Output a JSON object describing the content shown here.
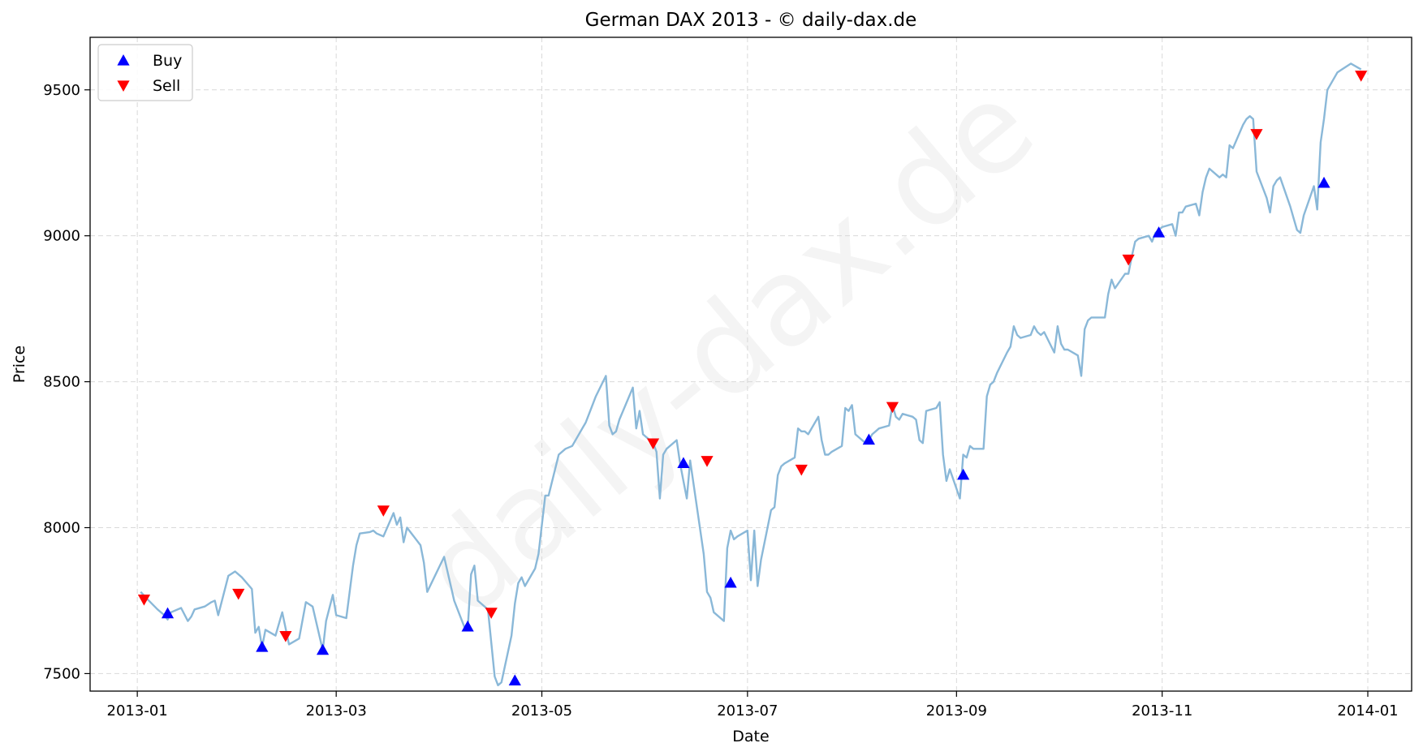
{
  "watermark": "daily-dax.de",
  "chart_data": {
    "type": "line",
    "title": "German DAX 2013 - © daily-dax.de",
    "xlabel": "Date",
    "ylabel": "Price",
    "xlim": [
      "2012-12-18",
      "2014-01-14"
    ],
    "ylim": [
      7440,
      9680
    ],
    "xticks": [
      "2013-01-01",
      "2013-03-01",
      "2013-05-01",
      "2013-07-01",
      "2013-09-01",
      "2013-11-01",
      "2014-01-01"
    ],
    "xtick_labels": [
      "2013-01",
      "2013-03",
      "2013-05",
      "2013-07",
      "2013-09",
      "2013-11",
      "2014-01"
    ],
    "yticks": [
      7500,
      8000,
      8500,
      9000,
      9500
    ],
    "ytick_labels": [
      "7500",
      "8000",
      "8500",
      "9000",
      "9500"
    ],
    "grid": true,
    "legend_position": "top-left",
    "colors": {
      "price": "#8ab8d8",
      "buy": "#0000ff",
      "sell": "#ff0000"
    },
    "series": [
      {
        "kind": "price",
        "x": [
          "2013-01-02",
          "2013-01-04",
          "2013-01-07",
          "2013-01-09",
          "2013-01-10",
          "2013-01-11",
          "2013-01-14",
          "2013-01-16",
          "2013-01-17",
          "2013-01-18",
          "2013-01-21",
          "2013-01-23",
          "2013-01-24",
          "2013-01-25",
          "2013-01-28",
          "2013-01-30",
          "2013-02-01",
          "2013-02-04",
          "2013-02-05",
          "2013-02-06",
          "2013-02-07",
          "2013-02-08",
          "2013-02-11",
          "2013-02-13",
          "2013-02-15",
          "2013-02-18",
          "2013-02-20",
          "2013-02-22",
          "2013-02-25",
          "2013-02-26",
          "2013-02-28",
          "2013-03-01",
          "2013-03-04",
          "2013-03-06",
          "2013-03-07",
          "2013-03-08",
          "2013-03-11",
          "2013-03-12",
          "2013-03-13",
          "2013-03-14",
          "2013-03-15",
          "2013-03-18",
          "2013-03-19",
          "2013-03-20",
          "2013-03-21",
          "2013-03-22",
          "2013-03-26",
          "2013-03-27",
          "2013-03-28",
          "2013-04-02",
          "2013-04-04",
          "2013-04-05",
          "2013-04-08",
          "2013-04-09",
          "2013-04-10",
          "2013-04-11",
          "2013-04-12",
          "2013-04-15",
          "2013-04-17",
          "2013-04-18",
          "2013-04-19",
          "2013-04-22",
          "2013-04-23",
          "2013-04-24",
          "2013-04-25",
          "2013-04-26",
          "2013-04-29",
          "2013-04-30",
          "2013-05-02",
          "2013-05-03",
          "2013-05-06",
          "2013-05-08",
          "2013-05-10",
          "2013-05-13",
          "2013-05-14",
          "2013-05-15",
          "2013-05-17",
          "2013-05-20",
          "2013-05-21",
          "2013-05-22",
          "2013-05-23",
          "2013-05-24",
          "2013-05-28",
          "2013-05-29",
          "2013-05-30",
          "2013-05-31",
          "2013-06-03",
          "2013-06-04",
          "2013-06-05",
          "2013-06-06",
          "2013-06-07",
          "2013-06-10",
          "2013-06-11",
          "2013-06-12",
          "2013-06-13",
          "2013-06-14",
          "2013-06-18",
          "2013-06-19",
          "2013-06-20",
          "2013-06-21",
          "2013-06-24",
          "2013-06-25",
          "2013-06-26",
          "2013-06-27",
          "2013-06-28",
          "2013-07-01",
          "2013-07-02",
          "2013-07-03",
          "2013-07-04",
          "2013-07-05",
          "2013-07-08",
          "2013-07-09",
          "2013-07-10",
          "2013-07-11",
          "2013-07-12",
          "2013-07-15",
          "2013-07-16",
          "2013-07-17",
          "2013-07-18",
          "2013-07-19",
          "2013-07-22",
          "2013-07-23",
          "2013-07-24",
          "2013-07-25",
          "2013-07-26",
          "2013-07-29",
          "2013-07-30",
          "2013-07-31",
          "2013-08-01",
          "2013-08-02",
          "2013-08-05",
          "2013-08-06",
          "2013-08-07",
          "2013-08-08",
          "2013-08-09",
          "2013-08-12",
          "2013-08-13",
          "2013-08-14",
          "2013-08-15",
          "2013-08-16",
          "2013-08-19",
          "2013-08-20",
          "2013-08-21",
          "2013-08-22",
          "2013-08-23",
          "2013-08-26",
          "2013-08-27",
          "2013-08-28",
          "2013-08-29",
          "2013-08-30",
          "2013-09-02",
          "2013-09-03",
          "2013-09-04",
          "2013-09-05",
          "2013-09-06",
          "2013-09-09",
          "2013-09-10",
          "2013-09-11",
          "2013-09-12",
          "2013-09-13",
          "2013-09-16",
          "2013-09-17",
          "2013-09-18",
          "2013-09-19",
          "2013-09-20",
          "2013-09-23",
          "2013-09-24",
          "2013-09-25",
          "2013-09-26",
          "2013-09-27",
          "2013-09-30",
          "2013-10-01",
          "2013-10-02",
          "2013-10-03",
          "2013-10-04",
          "2013-10-07",
          "2013-10-08",
          "2013-10-09",
          "2013-10-10",
          "2013-10-11",
          "2013-10-14",
          "2013-10-15",
          "2013-10-16",
          "2013-10-17",
          "2013-10-18",
          "2013-10-21",
          "2013-10-22",
          "2013-10-23",
          "2013-10-24",
          "2013-10-25",
          "2013-10-28",
          "2013-10-29",
          "2013-10-30",
          "2013-10-31",
          "2013-11-01",
          "2013-11-04",
          "2013-11-05",
          "2013-11-06",
          "2013-11-07",
          "2013-11-08",
          "2013-11-11",
          "2013-11-12",
          "2013-11-13",
          "2013-11-14",
          "2013-11-15",
          "2013-11-18",
          "2013-11-19",
          "2013-11-20",
          "2013-11-21",
          "2013-11-22",
          "2013-11-25",
          "2013-11-26",
          "2013-11-27",
          "2013-11-28",
          "2013-11-29",
          "2013-12-02",
          "2013-12-03",
          "2013-12-04",
          "2013-12-05",
          "2013-12-06",
          "2013-12-09",
          "2013-12-10",
          "2013-12-11",
          "2013-12-12",
          "2013-12-13",
          "2013-12-16",
          "2013-12-17",
          "2013-12-18",
          "2013-12-19",
          "2013-12-20",
          "2013-12-23",
          "2013-12-27",
          "2013-12-30"
        ],
        "y": [
          7780,
          7755,
          7720,
          7700,
          7685,
          7710,
          7725,
          7680,
          7695,
          7720,
          7730,
          7745,
          7750,
          7700,
          7835,
          7850,
          7830,
          7790,
          7640,
          7660,
          7590,
          7650,
          7630,
          7710,
          7600,
          7620,
          7745,
          7730,
          7580,
          7680,
          7770,
          7700,
          7690,
          7870,
          7940,
          7980,
          7985,
          7990,
          7980,
          7975,
          7970,
          8050,
          8010,
          8035,
          7950,
          8000,
          7940,
          7880,
          7780,
          7900,
          7800,
          7750,
          7660,
          7650,
          7840,
          7870,
          7750,
          7720,
          7490,
          7460,
          7470,
          7630,
          7740,
          7810,
          7830,
          7800,
          7860,
          7910,
          8110,
          8110,
          8250,
          8270,
          8280,
          8340,
          8360,
          8390,
          8450,
          8520,
          8350,
          8320,
          8330,
          8370,
          8480,
          8340,
          8400,
          8320,
          8290,
          8260,
          8100,
          8250,
          8270,
          8300,
          8220,
          8160,
          8100,
          8230,
          7910,
          7780,
          7760,
          7710,
          7680,
          7930,
          7990,
          7960,
          7970,
          7990,
          7820,
          7990,
          7800,
          7890,
          8060,
          8070,
          8180,
          8210,
          8220,
          8240,
          8340,
          8330,
          8330,
          8320,
          8380,
          8300,
          8250,
          8250,
          8260,
          8280,
          8410,
          8400,
          8420,
          8320,
          8290,
          8300,
          8320,
          8330,
          8340,
          8350,
          8420,
          8380,
          8370,
          8390,
          8380,
          8370,
          8300,
          8290,
          8400,
          8410,
          8430,
          8250,
          8160,
          8200,
          8100,
          8250,
          8240,
          8280,
          8270,
          8270,
          8450,
          8490,
          8500,
          8530,
          8600,
          8620,
          8690,
          8660,
          8650,
          8660,
          8690,
          8670,
          8660,
          8670,
          8600,
          8690,
          8630,
          8610,
          8610,
          8590,
          8520,
          8680,
          8710,
          8720,
          8720,
          8720,
          8800,
          8850,
          8820,
          8870,
          8870,
          8930,
          8980,
          8990,
          9000,
          8980,
          9010,
          9020,
          9030,
          9040,
          9000,
          9080,
          9080,
          9100,
          9110,
          9070,
          9150,
          9200,
          9230,
          9200,
          9210,
          9200,
          9310,
          9300,
          9380,
          9400,
          9410,
          9400,
          9220,
          9130,
          9080,
          9170,
          9190,
          9200,
          9100,
          9060,
          9020,
          9010,
          9070,
          9170,
          9090,
          9320,
          9400,
          9500,
          9560,
          9590,
          9570
        ]
      },
      {
        "name": "Buy",
        "kind": "buy",
        "x": [
          "2013-01-10",
          "2013-02-07",
          "2013-02-25",
          "2013-04-09",
          "2013-04-23",
          "2013-06-12",
          "2013-06-26",
          "2013-08-06",
          "2013-09-03",
          "2013-10-31",
          "2013-12-19"
        ],
        "y": [
          7705,
          7590,
          7580,
          7660,
          7475,
          8220,
          7810,
          8300,
          8180,
          9010,
          9180
        ]
      },
      {
        "name": "Sell",
        "kind": "sell",
        "x": [
          "2013-01-03",
          "2013-01-31",
          "2013-02-14",
          "2013-03-15",
          "2013-04-16",
          "2013-06-03",
          "2013-06-19",
          "2013-07-17",
          "2013-08-13",
          "2013-10-22",
          "2013-11-29",
          "2013-12-30"
        ],
        "y": [
          7755,
          7775,
          7630,
          8060,
          7710,
          8290,
          8230,
          8200,
          8415,
          8920,
          9350,
          9550
        ]
      }
    ]
  }
}
